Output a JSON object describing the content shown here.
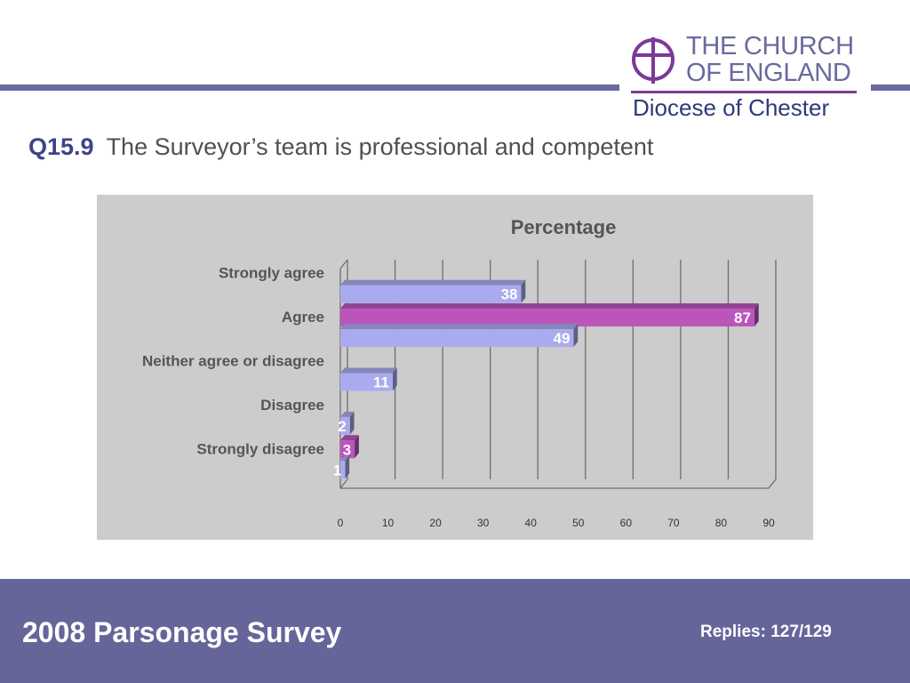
{
  "logo": {
    "line1": "THE CHURCH",
    "line2": "OF ENGLAND",
    "diocese": "Diocese of Chester",
    "color": "#6a6a9e",
    "accent": "#7a3a96"
  },
  "question": {
    "number": "Q15.9",
    "text": "The Surveyor’s team is professional and competent"
  },
  "chart_data": {
    "type": "bar",
    "orientation": "horizontal",
    "title": "Percentage",
    "categories": [
      "Strongly agree",
      "Agree",
      "Neither agree or disagree",
      "Disagree",
      "Strongly disagree"
    ],
    "series": [
      {
        "color": "#aaaaee",
        "values": [
          38,
          49,
          11,
          2,
          1
        ]
      },
      {
        "color": "#bb55bb",
        "values": [
          null,
          87,
          null,
          null,
          3
        ]
      }
    ],
    "xlim": [
      0,
      90
    ],
    "xticks": [
      0,
      10,
      20,
      30,
      40,
      50,
      60,
      70,
      80,
      90
    ],
    "grid": true,
    "legend": "none"
  },
  "footer": {
    "title": "2008 Parsonage Survey",
    "replies": "Replies: 127/129"
  }
}
